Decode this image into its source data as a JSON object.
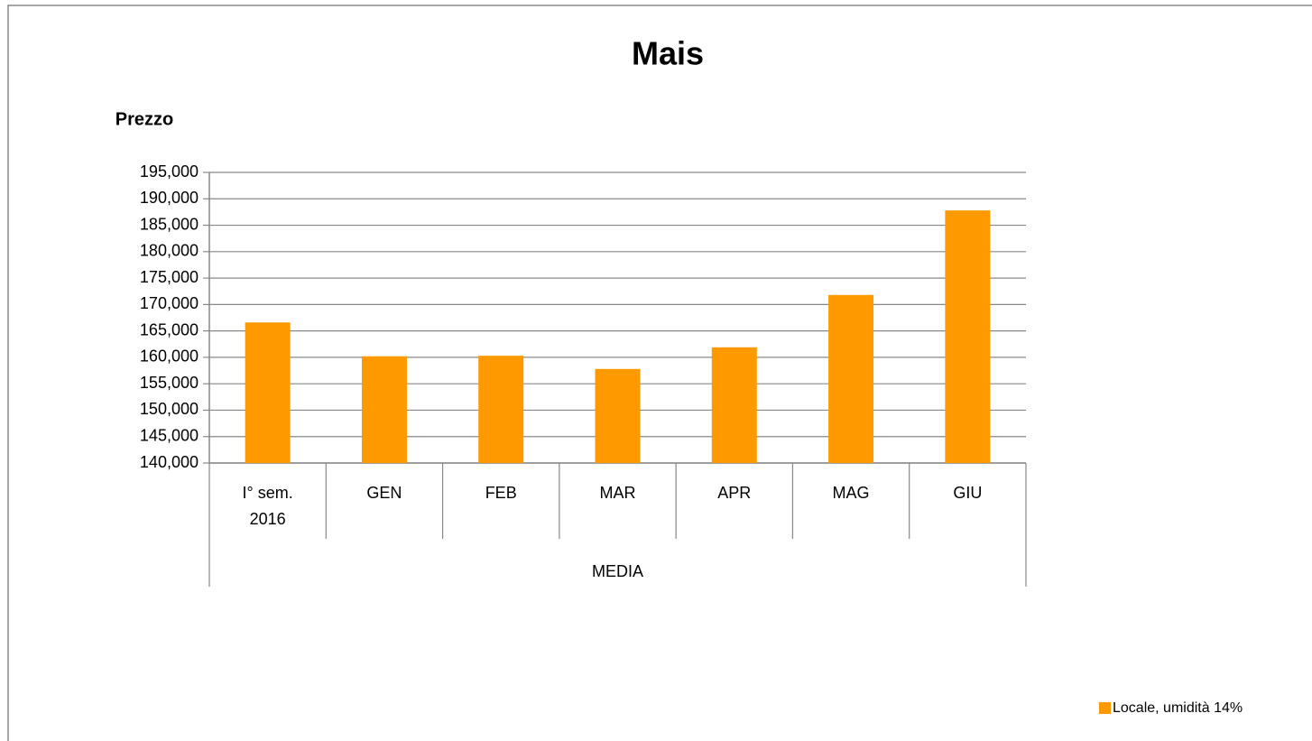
{
  "chart_data": {
    "type": "bar",
    "title": "Mais",
    "y_label": "Prezzo",
    "categories": [
      "I° sem. 2016",
      "GEN",
      "FEB",
      "MAR",
      "APR",
      "MAG",
      "GIU"
    ],
    "group_label": "MEDIA",
    "series": [
      {
        "name": "Locale, umidità 14%",
        "color": "#ff9900",
        "values": [
          166.6,
          160.2,
          160.3,
          157.8,
          161.9,
          171.8,
          187.8
        ]
      }
    ],
    "ylim": [
      140,
      195
    ],
    "yticks": [
      {
        "value": 140,
        "label": "140,000"
      },
      {
        "value": 145,
        "label": "145,000"
      },
      {
        "value": 150,
        "label": "150,000"
      },
      {
        "value": 155,
        "label": "155,000"
      },
      {
        "value": 160,
        "label": "160,000"
      },
      {
        "value": 165,
        "label": "165,000"
      },
      {
        "value": 170,
        "label": "170,000"
      },
      {
        "value": 175,
        "label": "175,000"
      },
      {
        "value": 180,
        "label": "180,000"
      },
      {
        "value": 185,
        "label": "185,000"
      },
      {
        "value": 190,
        "label": "190,000"
      },
      {
        "value": 195,
        "label": "195,000"
      }
    ],
    "grid": true,
    "legend": "bottom-right"
  }
}
